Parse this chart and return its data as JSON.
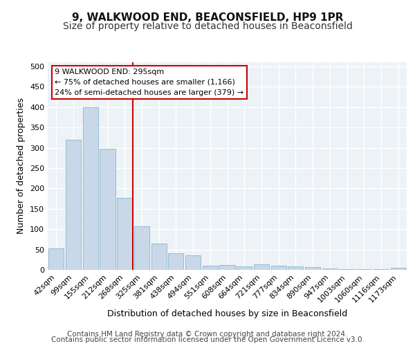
{
  "title": "9, WALKWOOD END, BEACONSFIELD, HP9 1PR",
  "subtitle": "Size of property relative to detached houses in Beaconsfield",
  "xlabel": "Distribution of detached houses by size in Beaconsfield",
  "ylabel": "Number of detached properties",
  "categories": [
    "42sqm",
    "99sqm",
    "155sqm",
    "212sqm",
    "268sqm",
    "325sqm",
    "381sqm",
    "438sqm",
    "494sqm",
    "551sqm",
    "608sqm",
    "664sqm",
    "721sqm",
    "777sqm",
    "834sqm",
    "890sqm",
    "947sqm",
    "1003sqm",
    "1060sqm",
    "1116sqm",
    "1173sqm"
  ],
  "values": [
    53,
    320,
    400,
    297,
    177,
    107,
    64,
    40,
    36,
    10,
    12,
    8,
    14,
    10,
    9,
    7,
    4,
    2,
    1,
    1,
    5
  ],
  "bar_color": "#c8d8e8",
  "bar_edge_color": "#8ab4cc",
  "annotation_text": "9 WALKWOOD END: 295sqm\n← 75% of detached houses are smaller (1,166)\n24% of semi-detached houses are larger (379) →",
  "vline_color": "#cc0000",
  "annotation_box_edge_color": "#cc0000",
  "ylim": [
    0,
    510
  ],
  "yticks": [
    0,
    50,
    100,
    150,
    200,
    250,
    300,
    350,
    400,
    450,
    500
  ],
  "footer_line1": "Contains HM Land Registry data © Crown copyright and database right 2024.",
  "footer_line2": "Contains public sector information licensed under the Open Government Licence v3.0.",
  "background_color": "#edf2f7",
  "grid_color": "#ffffff",
  "title_fontsize": 11,
  "subtitle_fontsize": 10,
  "xlabel_fontsize": 9,
  "ylabel_fontsize": 9,
  "tick_fontsize": 8,
  "footer_fontsize": 7.5,
  "ann_fontsize": 8
}
